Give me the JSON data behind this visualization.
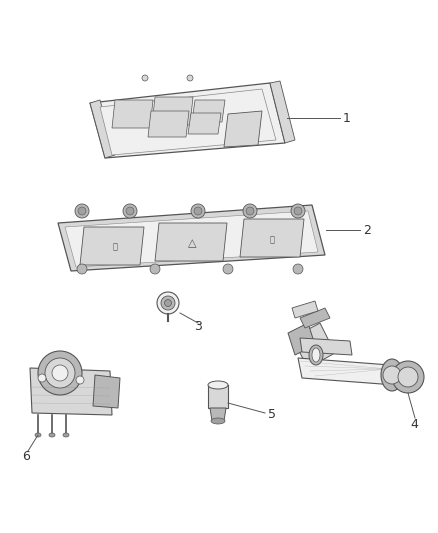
{
  "background_color": "#ffffff",
  "line_color": "#888888",
  "dark_line": "#555555",
  "label_color": "#333333",
  "face_light": "#f0f0f0",
  "face_mid": "#d8d8d8",
  "face_dark": "#b8b8b8",
  "face_darker": "#a0a0a0",
  "fig_width": 4.38,
  "fig_height": 5.33,
  "dpi": 100,
  "items": [
    {
      "id": "1"
    },
    {
      "id": "2"
    },
    {
      "id": "3"
    },
    {
      "id": "4"
    },
    {
      "id": "5"
    },
    {
      "id": "6"
    }
  ]
}
